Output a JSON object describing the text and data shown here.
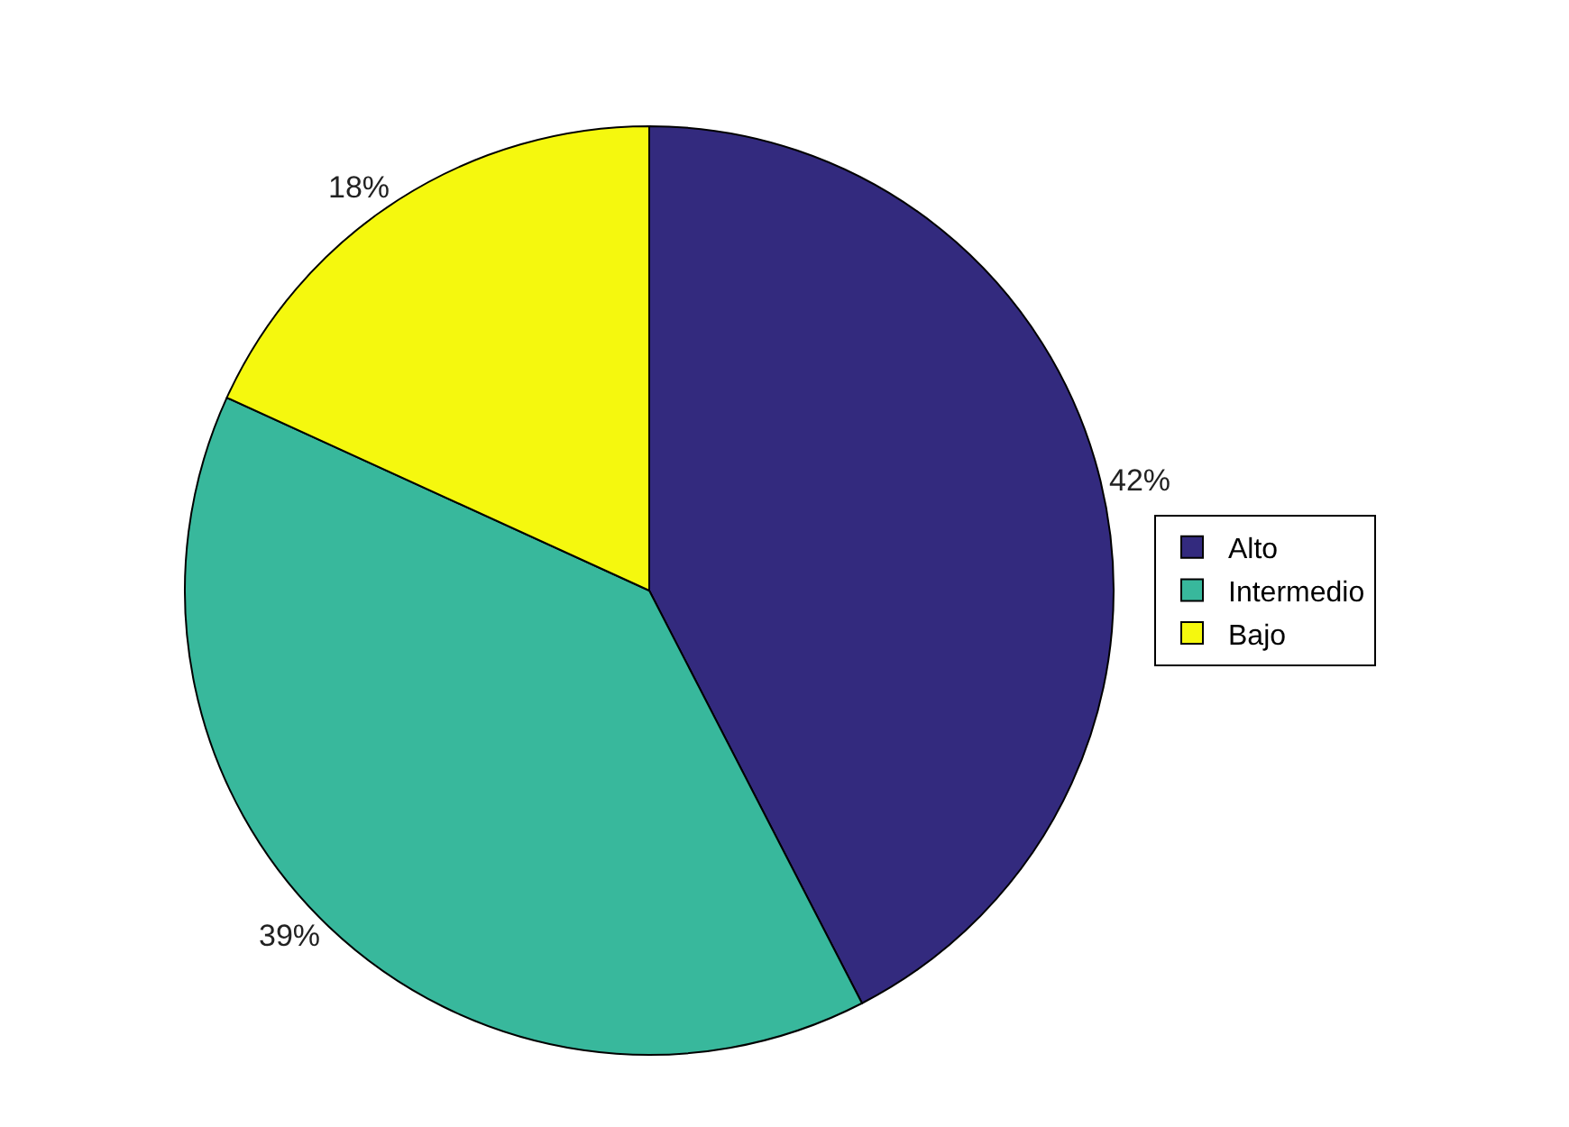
{
  "chart_data": {
    "type": "pie",
    "categories": [
      "Alto",
      "Intermedio",
      "Bajo"
    ],
    "values": [
      42,
      39,
      18
    ],
    "colors": [
      "#332a7e",
      "#38b89c",
      "#f5f80e"
    ],
    "value_labels": [
      "42%",
      "39%",
      "18%"
    ],
    "legend": "right"
  }
}
